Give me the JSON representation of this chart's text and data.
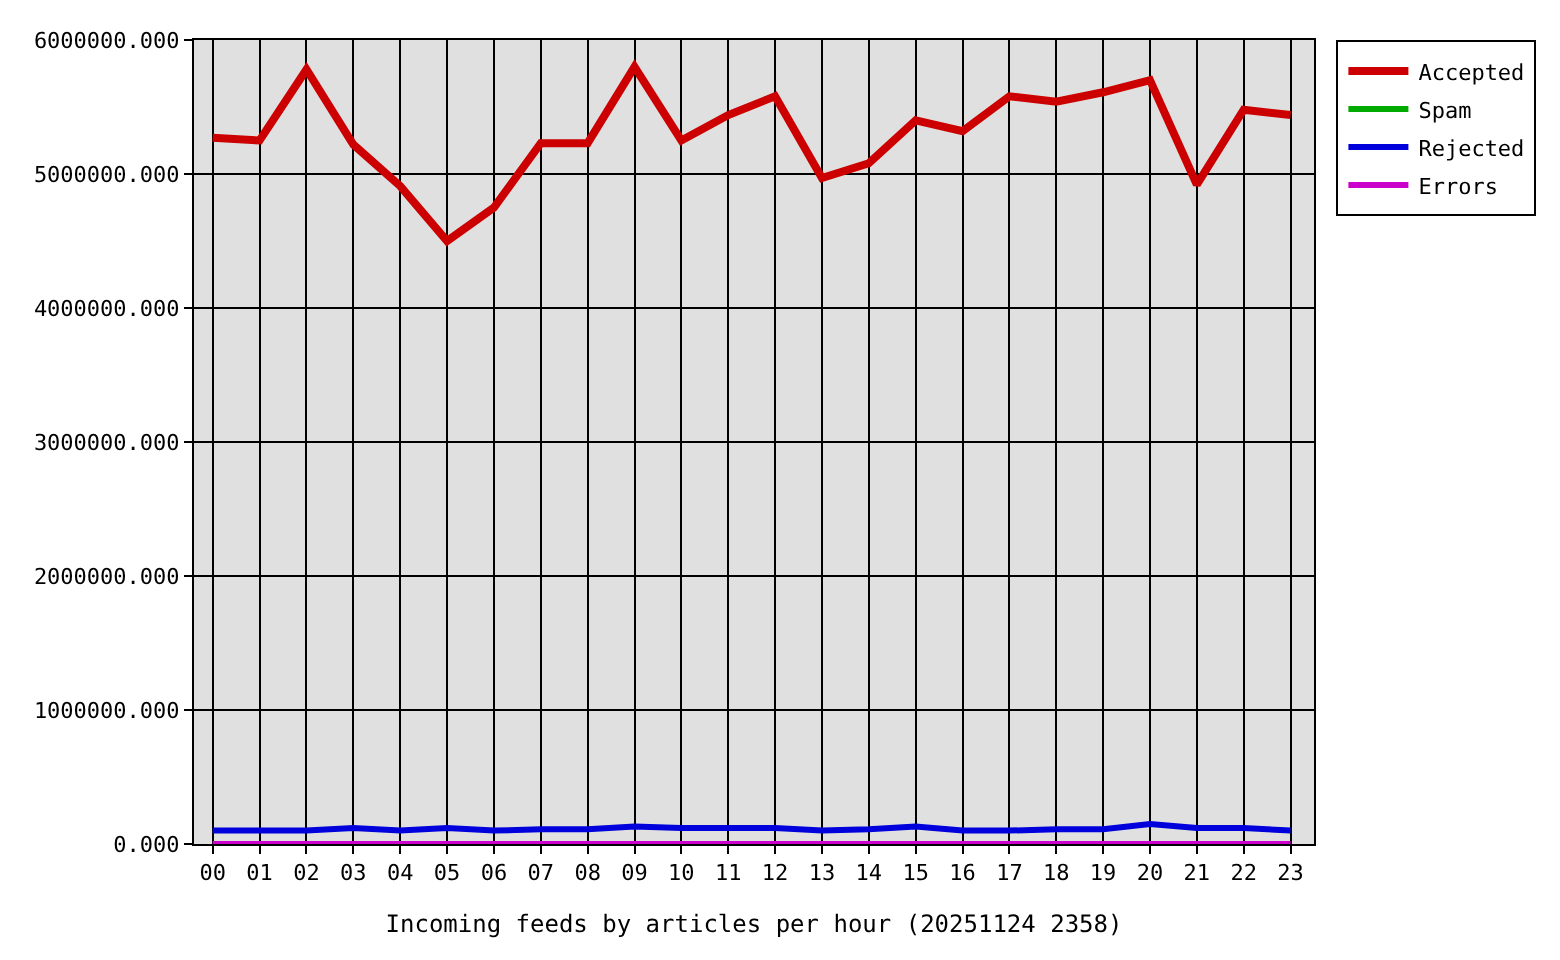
{
  "chart_data": {
    "type": "line",
    "xlabel": "Incoming feeds by articles per hour (20251124 2358)",
    "categories": [
      "00",
      "01",
      "02",
      "03",
      "04",
      "05",
      "06",
      "07",
      "08",
      "09",
      "10",
      "11",
      "12",
      "13",
      "14",
      "15",
      "16",
      "17",
      "18",
      "19",
      "20",
      "21",
      "22",
      "23"
    ],
    "series": [
      {
        "name": "Accepted",
        "color": "#cc0000",
        "values": [
          5270000,
          5250000,
          5780000,
          5220000,
          4910000,
          4500000,
          4750000,
          5230000,
          5230000,
          5800000,
          5250000,
          5440000,
          5580000,
          4970000,
          5080000,
          5400000,
          5320000,
          5580000,
          5540000,
          5610000,
          5700000,
          4920000,
          5480000,
          5440000
        ]
      },
      {
        "name": "Spam",
        "color": "#00aa00",
        "values": [
          null,
          null,
          null,
          null,
          null,
          null,
          null,
          null,
          null,
          null,
          null,
          null,
          null,
          null,
          null,
          null,
          null,
          null,
          null,
          null,
          null,
          null,
          null,
          null
        ]
      },
      {
        "name": "Rejected",
        "color": "#0000dd",
        "values": [
          100000,
          100000,
          100000,
          120000,
          100000,
          120000,
          100000,
          110000,
          110000,
          130000,
          120000,
          120000,
          120000,
          100000,
          110000,
          130000,
          100000,
          100000,
          110000,
          110000,
          150000,
          120000,
          120000,
          100000
        ]
      },
      {
        "name": "Errors",
        "color": "#cc00cc",
        "values": [
          0,
          0,
          0,
          0,
          0,
          0,
          0,
          0,
          0,
          0,
          0,
          0,
          0,
          0,
          0,
          0,
          0,
          0,
          0,
          0,
          0,
          0,
          0,
          0
        ]
      }
    ],
    "ylim": [
      0,
      6000000
    ],
    "yticks": [
      {
        "value": 0,
        "label": "0.000"
      },
      {
        "value": 1000000,
        "label": "1000000.000"
      },
      {
        "value": 2000000,
        "label": "2000000.000"
      },
      {
        "value": 3000000,
        "label": "3000000.000"
      },
      {
        "value": 4000000,
        "label": "4000000.000"
      },
      {
        "value": 5000000,
        "label": "5000000.000"
      },
      {
        "value": 6000000,
        "label": "6000000.000"
      }
    ],
    "grid": true,
    "legend": "top right",
    "line_style": "solid"
  }
}
